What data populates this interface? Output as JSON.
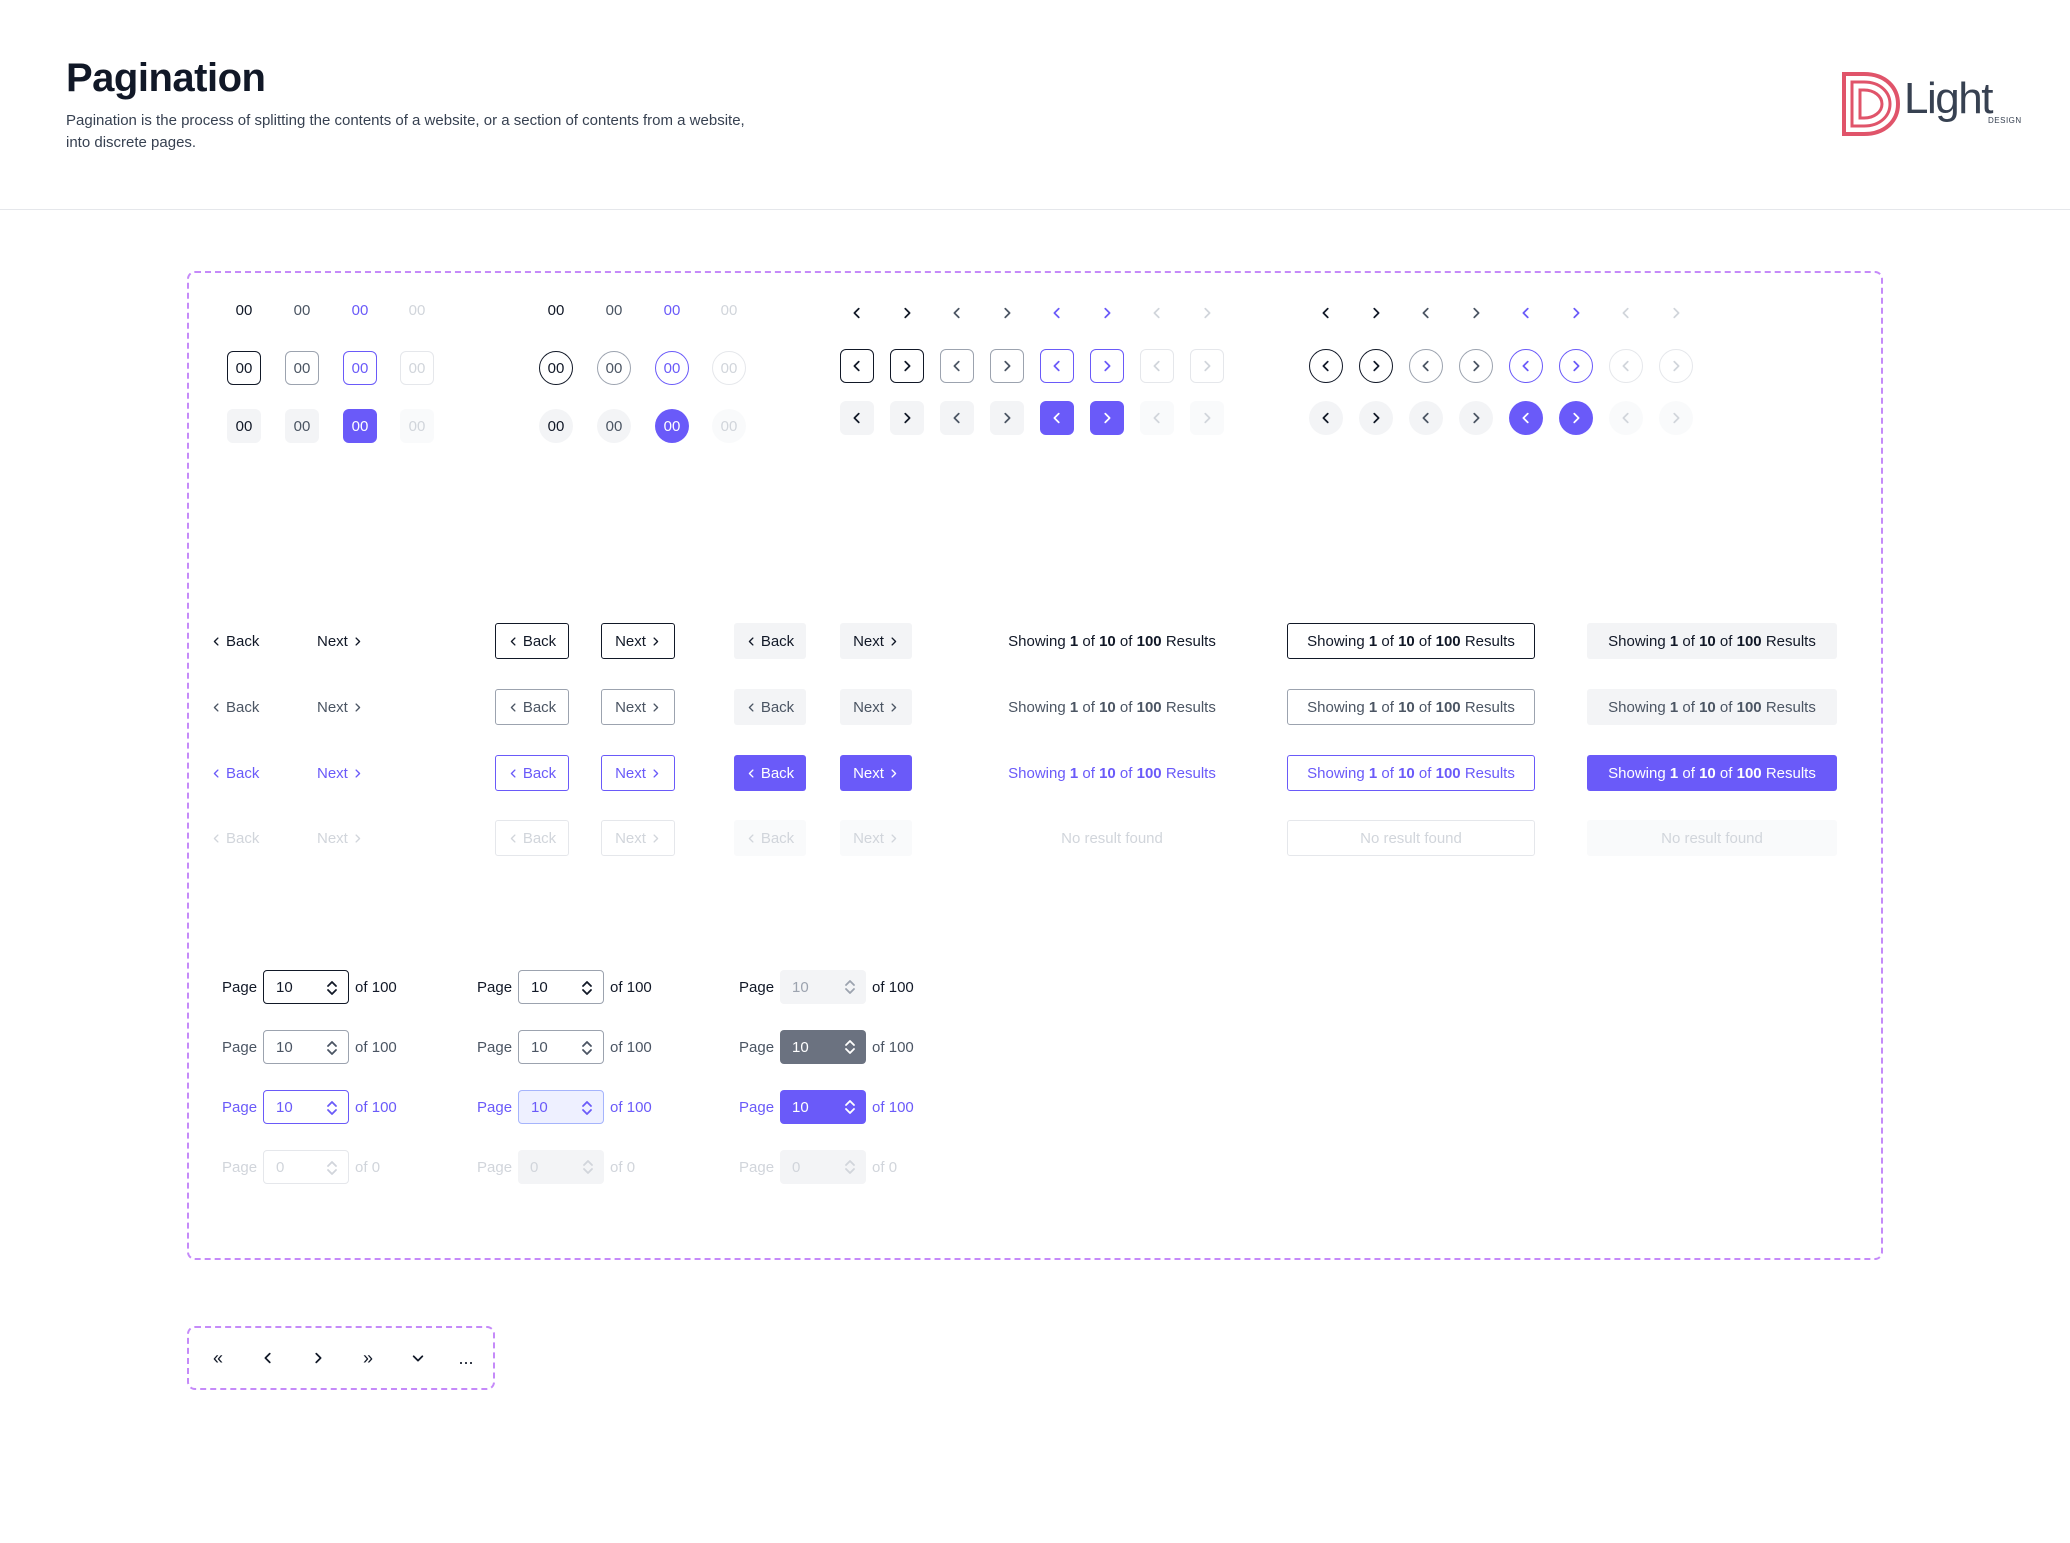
{
  "header": {
    "title": "Pagination",
    "description": "Pagination is the process of splitting the contents of a website, or a section of contents from a website, into discrete pages.",
    "logo_word": "Light",
    "logo_sub": "DESIGN"
  },
  "number_item": {
    "label": "00"
  },
  "nav_buttons": {
    "back": "Back",
    "next": "Next"
  },
  "results": {
    "showing": "Showing",
    "of": "of",
    "current": "1",
    "pages": "10",
    "total": "100",
    "results_word": "Results",
    "empty": "No result found"
  },
  "page_control": {
    "page_label": "Page",
    "value": "10",
    "suffix": "of 100",
    "empty_value": "0",
    "empty_suffix": "of 0"
  },
  "icons": [
    "double-chevron-left-icon",
    "chevron-left-icon",
    "chevron-right-icon",
    "double-chevron-right-icon",
    "chevron-down-icon",
    "ellipsis-icon"
  ],
  "symbols": {
    "first": "«",
    "last": "»",
    "ellipsis": "..."
  },
  "colors": {
    "accent": "#6a5af9",
    "text": "#111827",
    "muted": "#4b5563",
    "disabled": "#d1d5db",
    "frame": "#c58af9",
    "logo": "#e0546a"
  }
}
